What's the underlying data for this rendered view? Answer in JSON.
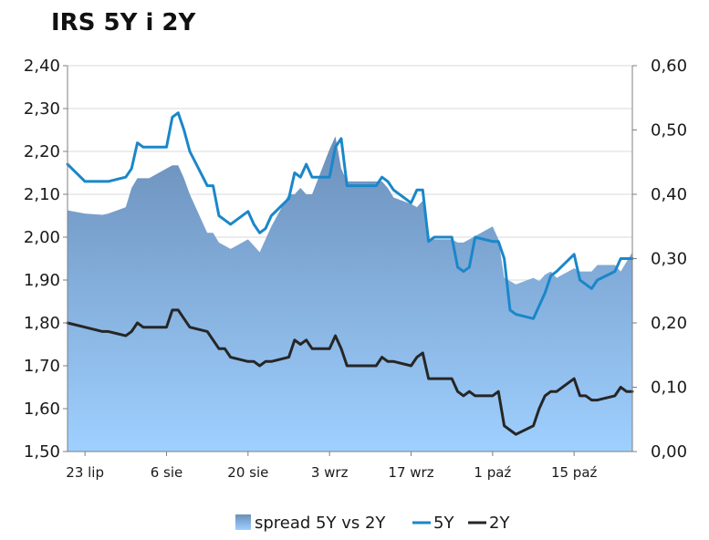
{
  "chart_data": {
    "type": "area",
    "title": "IRS 5Y i 2Y",
    "x_dates": [
      "2012-07-20",
      "2012-07-23",
      "2012-07-26",
      "2012-07-27",
      "2012-07-30",
      "2012-07-31",
      "2012-08-01",
      "2012-08-02",
      "2012-08-03",
      "2012-08-06",
      "2012-08-07",
      "2012-08-08",
      "2012-08-09",
      "2012-08-10",
      "2012-08-13",
      "2012-08-14",
      "2012-08-15",
      "2012-08-16",
      "2012-08-17",
      "2012-08-20",
      "2012-08-21",
      "2012-08-22",
      "2012-08-23",
      "2012-08-24",
      "2012-08-27",
      "2012-08-28",
      "2012-08-29",
      "2012-08-30",
      "2012-08-31",
      "2012-09-03",
      "2012-09-04",
      "2012-09-05",
      "2012-09-06",
      "2012-09-07",
      "2012-09-10",
      "2012-09-11",
      "2012-09-12",
      "2012-09-13",
      "2012-09-14",
      "2012-09-17",
      "2012-09-18",
      "2012-09-19",
      "2012-09-20",
      "2012-09-21",
      "2012-09-24",
      "2012-09-25",
      "2012-09-26",
      "2012-09-27",
      "2012-09-28",
      "2012-10-01",
      "2012-10-02",
      "2012-10-03",
      "2012-10-04",
      "2012-10-05",
      "2012-10-08",
      "2012-10-09",
      "2012-10-10",
      "2012-10-11",
      "2012-10-12",
      "2012-10-15",
      "2012-10-16",
      "2012-10-17",
      "2012-10-18",
      "2012-10-19",
      "2012-10-22",
      "2012-10-23",
      "2012-10-24",
      "2012-10-25"
    ],
    "series": [
      {
        "name": "spread 5Y vs 2Y",
        "axis": "right",
        "values": [
          0.375,
          0.37,
          0.368,
          0.37,
          0.38,
          0.41,
          0.425,
          0.425,
          0.425,
          0.44,
          0.445,
          0.445,
          0.425,
          0.4,
          0.34,
          0.34,
          0.325,
          0.32,
          0.315,
          0.33,
          0.32,
          0.31,
          0.33,
          0.35,
          0.4,
          0.4,
          0.41,
          0.4,
          0.4,
          0.47,
          0.49,
          0.44,
          0.42,
          0.42,
          0.42,
          0.42,
          0.42,
          0.41,
          0.395,
          0.385,
          0.38,
          0.39,
          0.33,
          0.33,
          0.33,
          0.325,
          0.325,
          0.33,
          0.335,
          0.35,
          0.33,
          0.27,
          0.265,
          0.26,
          0.27,
          0.265,
          0.275,
          0.28,
          0.27,
          0.285,
          0.28,
          0.28,
          0.28,
          0.29,
          0.29,
          0.28,
          0.295,
          0.31
        ]
      },
      {
        "name": "5Y",
        "axis": "left",
        "values": [
          2.17,
          2.13,
          2.13,
          2.13,
          2.14,
          2.16,
          2.22,
          2.21,
          2.21,
          2.21,
          2.28,
          2.29,
          2.25,
          2.2,
          2.12,
          2.12,
          2.05,
          2.04,
          2.03,
          2.06,
          2.03,
          2.01,
          2.02,
          2.05,
          2.09,
          2.15,
          2.14,
          2.17,
          2.14,
          2.14,
          2.21,
          2.23,
          2.12,
          2.12,
          2.12,
          2.12,
          2.14,
          2.13,
          2.11,
          2.08,
          2.11,
          2.11,
          1.99,
          2.0,
          2.0,
          1.93,
          1.92,
          1.93,
          2.0,
          1.99,
          1.99,
          1.95,
          1.83,
          1.82,
          1.81,
          1.84,
          1.87,
          1.91,
          1.92,
          1.96,
          1.9,
          1.89,
          1.88,
          1.9,
          1.92,
          1.95,
          1.95,
          1.95
        ]
      },
      {
        "name": "2Y",
        "axis": "left",
        "values": [
          1.8,
          1.79,
          1.78,
          1.78,
          1.77,
          1.78,
          1.8,
          1.79,
          1.79,
          1.79,
          1.83,
          1.83,
          1.81,
          1.79,
          1.78,
          1.76,
          1.74,
          1.74,
          1.72,
          1.71,
          1.71,
          1.7,
          1.71,
          1.71,
          1.72,
          1.76,
          1.75,
          1.76,
          1.74,
          1.74,
          1.77,
          1.74,
          1.7,
          1.7,
          1.7,
          1.7,
          1.72,
          1.71,
          1.71,
          1.7,
          1.72,
          1.73,
          1.67,
          1.67,
          1.67,
          1.64,
          1.63,
          1.64,
          1.63,
          1.63,
          1.64,
          1.56,
          1.55,
          1.54,
          1.56,
          1.6,
          1.63,
          1.64,
          1.64,
          1.67,
          1.63,
          1.63,
          1.62,
          1.62,
          1.63,
          1.65,
          1.64,
          1.64
        ]
      }
    ],
    "y_left": {
      "ylim": [
        1.5,
        2.4
      ],
      "ticks": [
        "1,50",
        "1,60",
        "1,70",
        "1,80",
        "1,90",
        "2,00",
        "2,10",
        "2,20",
        "2,30",
        "2,40"
      ]
    },
    "y_right": {
      "ylim": [
        0,
        0.6
      ],
      "ticks": [
        "0,00",
        "0,10",
        "0,20",
        "0,30",
        "0,40",
        "0,50",
        "0,60"
      ]
    },
    "x_ticks": [
      {
        "label": "23 lip",
        "date": "2012-07-23"
      },
      {
        "label": "6 sie",
        "date": "2012-08-06"
      },
      {
        "label": "20 sie",
        "date": "2012-08-20"
      },
      {
        "label": "3 wrz",
        "date": "2012-09-03"
      },
      {
        "label": "17 wrz",
        "date": "2012-09-17"
      },
      {
        "label": "1 paź",
        "date": "2012-10-01"
      },
      {
        "label": "15 paź",
        "date": "2012-10-15"
      }
    ],
    "grid": true,
    "legend": "bottom",
    "colors": {
      "spread_top": "#6b8fba",
      "spread_bottom": "#9fd0ff",
      "line_5Y": "#1a87c9",
      "line_2Y": "#262626",
      "grid": "#d9d9d9",
      "axis": "#7f7f7f"
    }
  }
}
